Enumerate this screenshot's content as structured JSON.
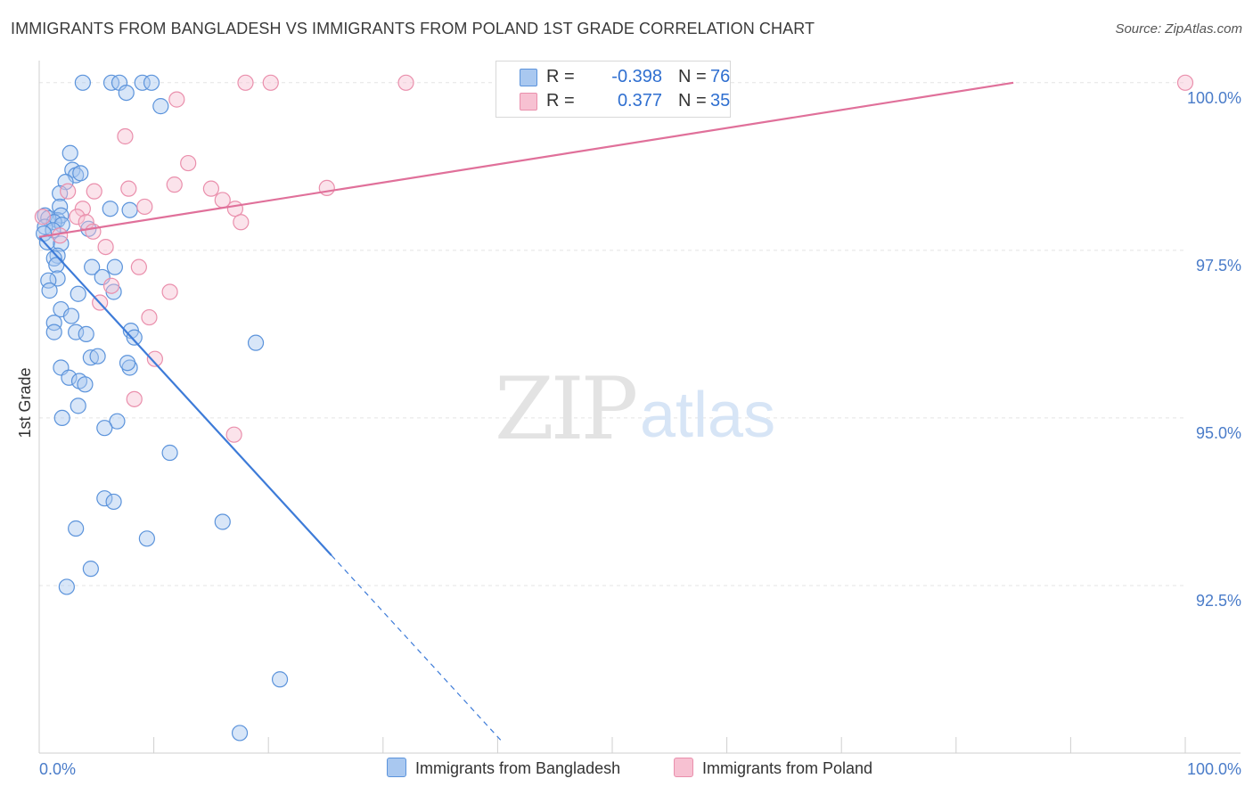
{
  "title": "IMMIGRANTS FROM BANGLADESH VS IMMIGRANTS FROM POLAND 1ST GRADE CORRELATION CHART",
  "source": "Source: ZipAtlas.com",
  "watermark": {
    "zip": "ZIP",
    "atlas": "atlas"
  },
  "legend": {
    "rows": [
      {
        "r_label": "R =",
        "r_value": "-0.398",
        "n_label": "N =",
        "n_value": "76"
      },
      {
        "r_label": "R =",
        "r_value": "0.377",
        "n_label": "N =",
        "n_value": "35"
      }
    ]
  },
  "bottom_legend": {
    "series1": "Immigrants from Bangladesh",
    "series2": "Immigrants from Poland"
  },
  "colors": {
    "blue_fill": "#a9c8f0",
    "blue_stroke": "#5b93db",
    "blue_line": "#3d7bd8",
    "pink_fill": "#f7c1d2",
    "pink_stroke": "#ea8fac",
    "pink_line": "#e0709a"
  },
  "chart_data": {
    "type": "scatter",
    "title": "IMMIGRANTS FROM BANGLADESH VS IMMIGRANTS FROM POLAND 1ST GRADE CORRELATION CHART",
    "xlabel": "",
    "ylabel": "1st Grade",
    "xlim": [
      0,
      100
    ],
    "ylim": [
      90.0,
      100.25
    ],
    "x_tick_labels": [
      "0.0%",
      "100.0%"
    ],
    "y_ticks": [
      92.5,
      95.0,
      97.5,
      100.0
    ],
    "y_tick_labels": [
      "92.5%",
      "95.0%",
      "97.5%",
      "100.0%"
    ],
    "series": [
      {
        "name": "Immigrants from Bangladesh",
        "R": -0.398,
        "N": 76,
        "trend": {
          "x": [
            0,
            25.5
          ],
          "y": [
            97.7,
            92.95
          ]
        },
        "trend_dashed": {
          "x": [
            25.5,
            40.5
          ],
          "y": [
            92.95,
            90.15
          ]
        },
        "points": [
          [
            3.8,
            100.0
          ],
          [
            6.3,
            100.0
          ],
          [
            7.0,
            100.0
          ],
          [
            7.6,
            99.85
          ],
          [
            9.0,
            100.0
          ],
          [
            9.8,
            100.0
          ],
          [
            10.6,
            99.65
          ],
          [
            2.7,
            98.95
          ],
          [
            2.9,
            98.7
          ],
          [
            3.2,
            98.62
          ],
          [
            3.6,
            98.65
          ],
          [
            2.3,
            98.52
          ],
          [
            1.8,
            98.35
          ],
          [
            1.8,
            98.15
          ],
          [
            7.9,
            98.1
          ],
          [
            6.2,
            98.12
          ],
          [
            1.6,
            97.95
          ],
          [
            1.9,
            98.02
          ],
          [
            0.5,
            98.02
          ],
          [
            0.8,
            97.98
          ],
          [
            1.3,
            97.92
          ],
          [
            2.0,
            97.88
          ],
          [
            0.5,
            97.85
          ],
          [
            1.2,
            97.8
          ],
          [
            0.4,
            97.75
          ],
          [
            4.3,
            97.82
          ],
          [
            0.7,
            97.62
          ],
          [
            1.9,
            97.6
          ],
          [
            1.6,
            97.42
          ],
          [
            1.3,
            97.38
          ],
          [
            1.5,
            97.28
          ],
          [
            6.6,
            97.25
          ],
          [
            4.6,
            97.25
          ],
          [
            5.5,
            97.1
          ],
          [
            1.6,
            97.08
          ],
          [
            0.8,
            97.05
          ],
          [
            0.9,
            96.9
          ],
          [
            3.4,
            96.85
          ],
          [
            6.5,
            96.88
          ],
          [
            1.9,
            96.62
          ],
          [
            2.8,
            96.52
          ],
          [
            1.3,
            96.42
          ],
          [
            1.3,
            96.28
          ],
          [
            3.2,
            96.28
          ],
          [
            4.1,
            96.25
          ],
          [
            8.0,
            96.3
          ],
          [
            8.3,
            96.2
          ],
          [
            18.9,
            96.12
          ],
          [
            4.5,
            95.9
          ],
          [
            5.1,
            95.92
          ],
          [
            1.9,
            95.75
          ],
          [
            7.9,
            95.75
          ],
          [
            7.7,
            95.82
          ],
          [
            2.6,
            95.6
          ],
          [
            3.5,
            95.55
          ],
          [
            4.0,
            95.5
          ],
          [
            3.4,
            95.18
          ],
          [
            2.0,
            95.0
          ],
          [
            6.8,
            94.95
          ],
          [
            5.7,
            94.85
          ],
          [
            11.4,
            94.48
          ],
          [
            5.7,
            93.8
          ],
          [
            6.5,
            93.75
          ],
          [
            16.0,
            93.45
          ],
          [
            3.2,
            93.35
          ],
          [
            9.4,
            93.2
          ],
          [
            4.5,
            92.75
          ],
          [
            2.4,
            92.48
          ],
          [
            21.0,
            91.1
          ],
          [
            17.5,
            90.3
          ]
        ]
      },
      {
        "name": "Immigrants from Poland",
        "R": 0.377,
        "N": 35,
        "trend": {
          "x": [
            0,
            85.0
          ],
          "y": [
            97.7,
            100.0
          ]
        },
        "points": [
          [
            0.3,
            98.0
          ],
          [
            12.0,
            99.75
          ],
          [
            18.0,
            100.0
          ],
          [
            20.2,
            100.0
          ],
          [
            32.0,
            100.0
          ],
          [
            100.0,
            100.0
          ],
          [
            7.5,
            99.2
          ],
          [
            13.0,
            98.8
          ],
          [
            11.8,
            98.48
          ],
          [
            15.0,
            98.42
          ],
          [
            25.1,
            98.43
          ],
          [
            7.8,
            98.42
          ],
          [
            2.5,
            98.38
          ],
          [
            4.8,
            98.38
          ],
          [
            16.0,
            98.25
          ],
          [
            17.1,
            98.12
          ],
          [
            9.2,
            98.15
          ],
          [
            3.8,
            98.12
          ],
          [
            3.3,
            98.0
          ],
          [
            4.1,
            97.92
          ],
          [
            17.6,
            97.92
          ],
          [
            4.7,
            97.78
          ],
          [
            1.8,
            97.72
          ],
          [
            5.8,
            97.55
          ],
          [
            8.7,
            97.25
          ],
          [
            6.3,
            96.97
          ],
          [
            11.4,
            96.88
          ],
          [
            5.3,
            96.72
          ],
          [
            9.6,
            96.5
          ],
          [
            10.1,
            95.88
          ],
          [
            8.3,
            95.28
          ],
          [
            17.0,
            94.75
          ]
        ]
      }
    ]
  }
}
